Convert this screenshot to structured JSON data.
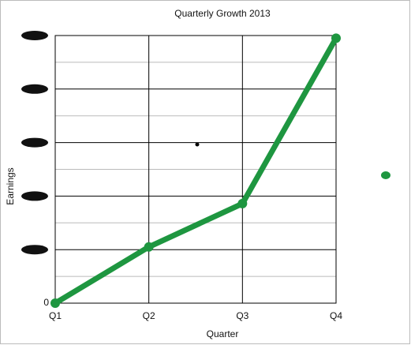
{
  "chart_data": {
    "type": "line",
    "title": "Quarterly Growth 2013",
    "x_label": "Quarter",
    "y_label": "Earnings",
    "categories": [
      "Q1",
      "Q2",
      "Q3",
      "Q4"
    ],
    "series": [
      {
        "name": "Earnings",
        "color": "#1e9640",
        "values": [
          0,
          1.05,
          1.86,
          4.95
        ]
      }
    ],
    "ylim": [
      0,
      5
    ],
    "yticks": [
      0
    ],
    "redacted_yticks": [
      1,
      2,
      3,
      4,
      5
    ],
    "minor_yticks": [
      0.5,
      1.5,
      2.5,
      3.5,
      4.5
    ],
    "grid": true
  }
}
